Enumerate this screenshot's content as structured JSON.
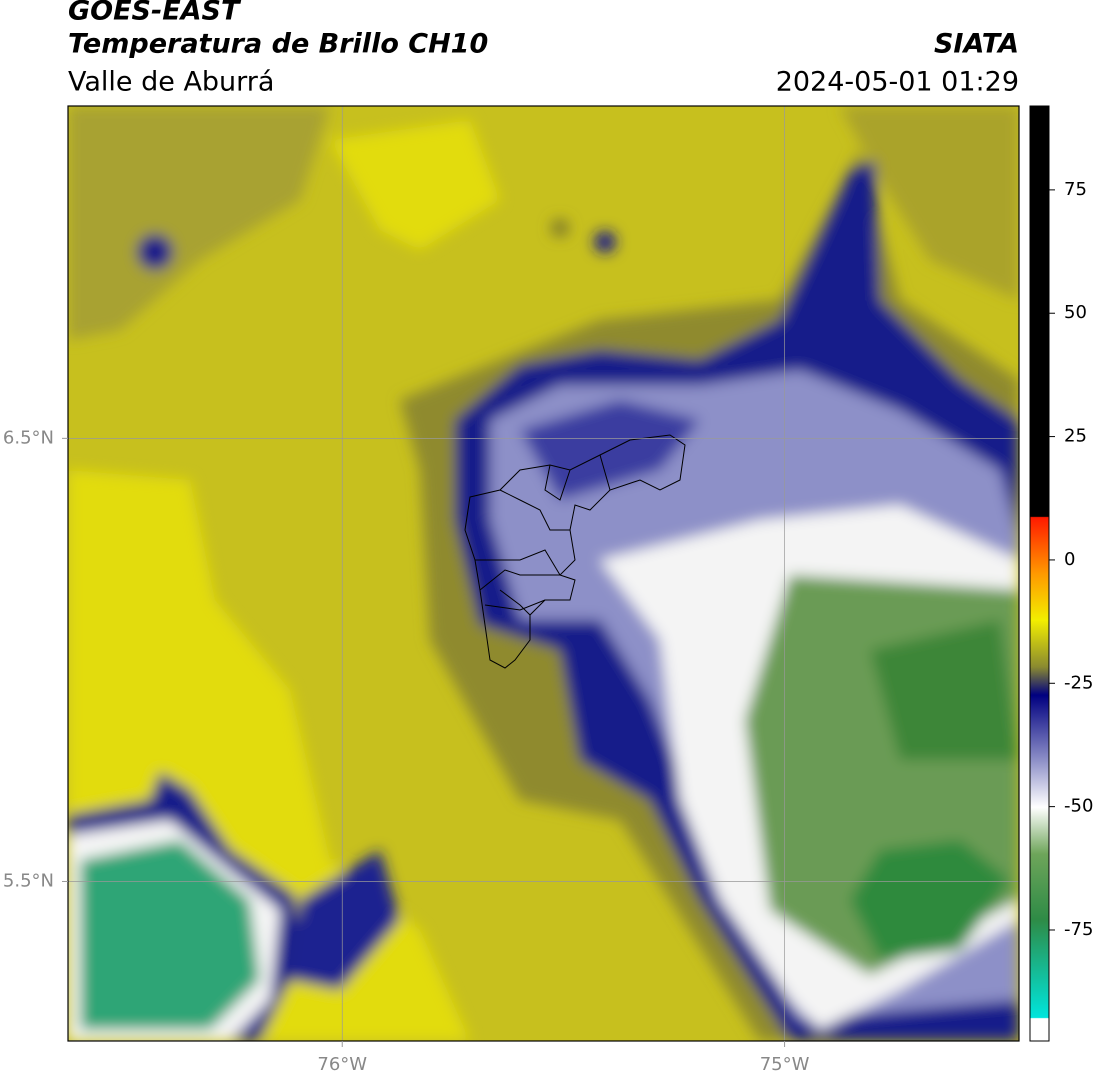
{
  "header": {
    "title": "GOES-EAST",
    "subtitle": "Temperatura de Brillo CH10",
    "region": "Valle de Aburrá",
    "source": "SIATA",
    "datetime": "2024-05-01 01:29"
  },
  "map": {
    "xlim": [
      -76.62,
      -74.47
    ],
    "ylim": [
      5.14,
      7.25
    ],
    "xticks": [
      {
        "value": -76,
        "label": "76°W"
      },
      {
        "value": -75,
        "label": "75°W"
      }
    ],
    "yticks": [
      {
        "value": 6.5,
        "label": "6.5°N"
      },
      {
        "value": 5.5,
        "label": "5.5°N"
      }
    ]
  },
  "colorbar": {
    "lim": [
      -97.5,
      92
    ],
    "ticks": [
      75,
      50,
      25,
      0,
      -25,
      -50,
      -75
    ]
  }
}
